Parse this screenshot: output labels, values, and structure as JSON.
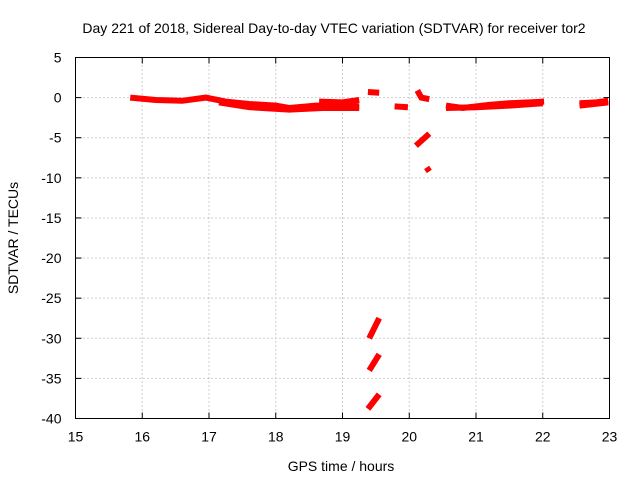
{
  "chart_data": {
    "type": "scatter",
    "title": "Day 221 of 2018, Sidereal Day-to-day VTEC variation (SDTVAR) for receiver tor2",
    "xlabel": "GPS time / hours",
    "ylabel": "SDTVAR / TECUs",
    "xlim": [
      15,
      23
    ],
    "ylim": [
      -40,
      5
    ],
    "grid": true,
    "x_ticks": [
      "15",
      "16",
      "17",
      "18",
      "19",
      "20",
      "21",
      "22",
      "23"
    ],
    "y_ticks": [
      "5",
      "0",
      "-5",
      "-10",
      "-15",
      "-20",
      "-25",
      "-30",
      "-35",
      "-40"
    ],
    "color": "#ff0000",
    "series": [
      {
        "name": "SDTVAR",
        "segments": [
          [
            [
              15.82,
              0.0
            ],
            [
              16.2,
              -0.3
            ],
            [
              16.6,
              -0.4
            ],
            [
              16.95,
              0.0
            ],
            [
              17.25,
              -0.5
            ],
            [
              17.6,
              -0.8
            ],
            [
              18.0,
              -1.0
            ],
            [
              18.2,
              -1.3
            ],
            [
              18.6,
              -1.0
            ],
            [
              19.25,
              -1.1
            ]
          ],
          [
            [
              17.15,
              -0.6
            ],
            [
              17.6,
              -1.2
            ],
            [
              18.2,
              -1.5
            ],
            [
              18.7,
              -1.3
            ],
            [
              19.25,
              -1.3
            ]
          ],
          [
            [
              18.65,
              -0.5
            ],
            [
              19.0,
              -0.6
            ],
            [
              19.25,
              -0.3
            ]
          ],
          [
            [
              19.38,
              0.7
            ],
            [
              19.55,
              0.6
            ]
          ],
          [
            [
              19.78,
              -1.1
            ],
            [
              19.98,
              -1.2
            ]
          ],
          [
            [
              20.12,
              0.9
            ],
            [
              20.18,
              0.0
            ],
            [
              20.3,
              -0.2
            ]
          ],
          [
            [
              20.55,
              -1.0
            ],
            [
              20.8,
              -1.3
            ],
            [
              21.2,
              -0.9
            ],
            [
              21.5,
              -0.7
            ],
            [
              21.8,
              -0.6
            ],
            [
              22.02,
              -0.5
            ]
          ],
          [
            [
              20.55,
              -1.3
            ],
            [
              21.0,
              -1.2
            ],
            [
              21.5,
              -1.0
            ],
            [
              22.0,
              -0.7
            ]
          ],
          [
            [
              22.55,
              -0.7
            ],
            [
              22.8,
              -0.6
            ],
            [
              22.98,
              -0.4
            ]
          ],
          [
            [
              22.55,
              -1.0
            ],
            [
              22.98,
              -0.6
            ]
          ],
          [
            [
              20.1,
              -6.0
            ],
            [
              20.3,
              -4.5
            ]
          ],
          [
            [
              20.26,
              -8.7
            ],
            [
              20.3,
              -9.2
            ]
          ],
          [
            [
              19.4,
              -30.0
            ],
            [
              19.55,
              -27.5
            ]
          ],
          [
            [
              19.4,
              -34.0
            ],
            [
              19.55,
              -32.0
            ]
          ],
          [
            [
              19.38,
              -38.8
            ],
            [
              19.55,
              -37.0
            ]
          ]
        ]
      }
    ]
  }
}
